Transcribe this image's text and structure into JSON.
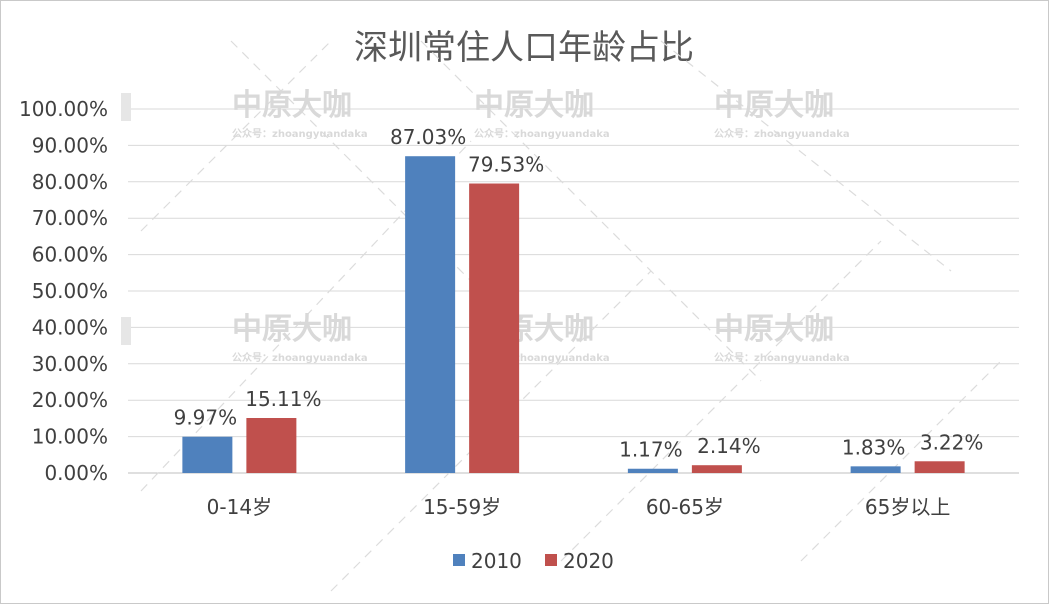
{
  "chart_data": {
    "type": "bar",
    "title": "深圳常住人口年龄占比",
    "categories": [
      "0-14岁",
      "15-59岁",
      "60-65岁",
      "65岁以上"
    ],
    "series": [
      {
        "name": "2010",
        "color": "#4f81bd",
        "values": [
          9.97,
          87.03,
          1.17,
          1.83
        ],
        "labels": [
          "9.97%",
          "87.03%",
          "1.17%",
          "1.83%"
        ]
      },
      {
        "name": "2020",
        "color": "#c0504d",
        "values": [
          15.11,
          79.53,
          2.14,
          3.22
        ],
        "labels": [
          "15.11%",
          "79.53%",
          "2.14%",
          "3.22%"
        ]
      }
    ],
    "ylim": [
      0,
      100
    ],
    "yticks": [
      "0.00%",
      "10.00%",
      "20.00%",
      "30.00%",
      "40.00%",
      "50.00%",
      "60.00%",
      "70.00%",
      "80.00%",
      "90.00%",
      "100.00%"
    ],
    "grid": true,
    "legend": "bottom"
  },
  "watermark": {
    "brand": "中原大咖",
    "sub": "公众号：zhoangyuandaka"
  }
}
